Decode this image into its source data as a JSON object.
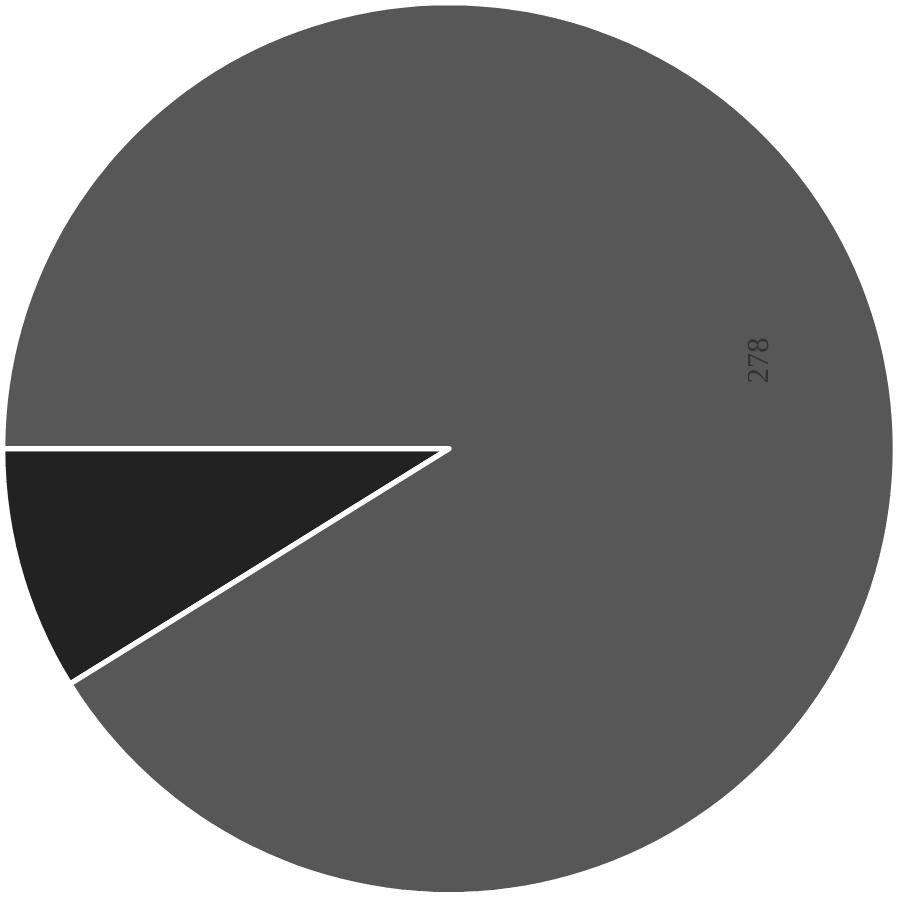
{
  "chart_data": {
    "type": "pie",
    "categories": [
      null,
      null
    ],
    "values": [
      27,
      278
    ],
    "colors": [
      "#222222",
      "#575757"
    ],
    "value_labels": [
      null,
      "278"
    ]
  }
}
